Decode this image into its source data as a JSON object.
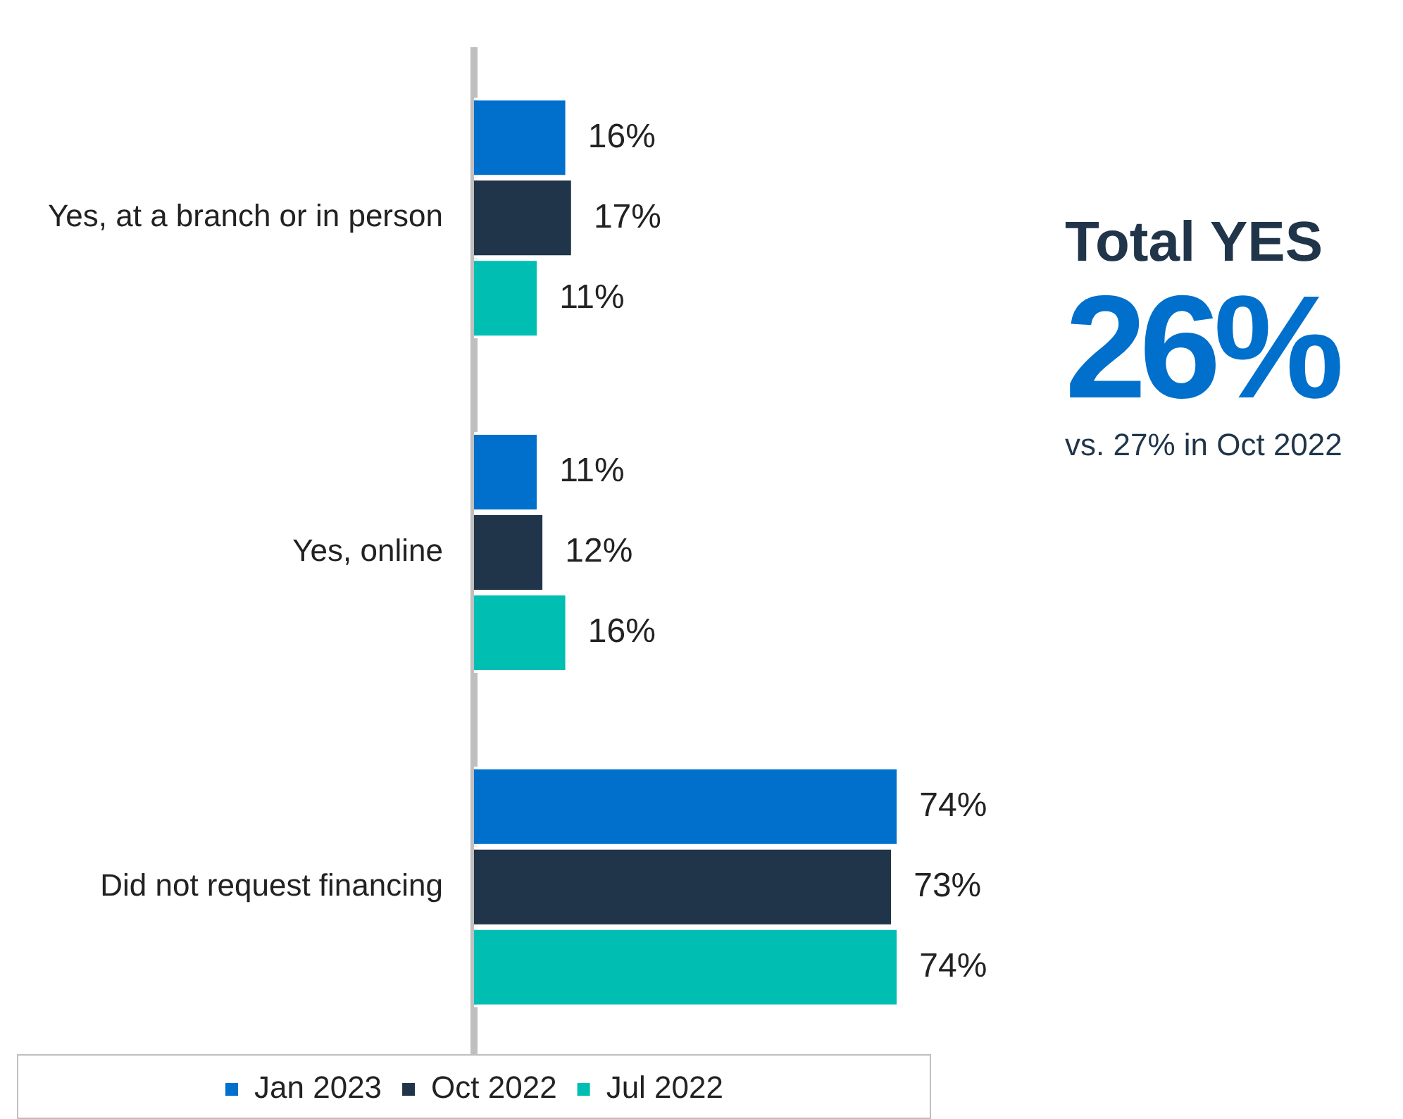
{
  "chart_data": {
    "type": "bar",
    "orientation": "horizontal",
    "categories": [
      "Yes, at a branch or in person",
      "Yes, online",
      "Did not request financing"
    ],
    "series": [
      {
        "name": "Jan 2023",
        "color": "#0070cc",
        "values": [
          16,
          11,
          74
        ],
        "value_labels": [
          "16%",
          "11%",
          "74%"
        ]
      },
      {
        "name": "Oct 2022",
        "color": "#203549",
        "values": [
          17,
          12,
          73
        ],
        "value_labels": [
          "17%",
          "12%",
          "73%"
        ]
      },
      {
        "name": "Jul 2022",
        "color": "#00bfb2",
        "values": [
          11,
          16,
          74
        ],
        "value_labels": [
          "11%",
          "16%",
          "74%"
        ]
      }
    ],
    "tick_labels": "y",
    "legend": "bottom",
    "annotations": [
      "Total YES",
      "26%",
      "vs. 27% in Oct 2022"
    ]
  }
}
